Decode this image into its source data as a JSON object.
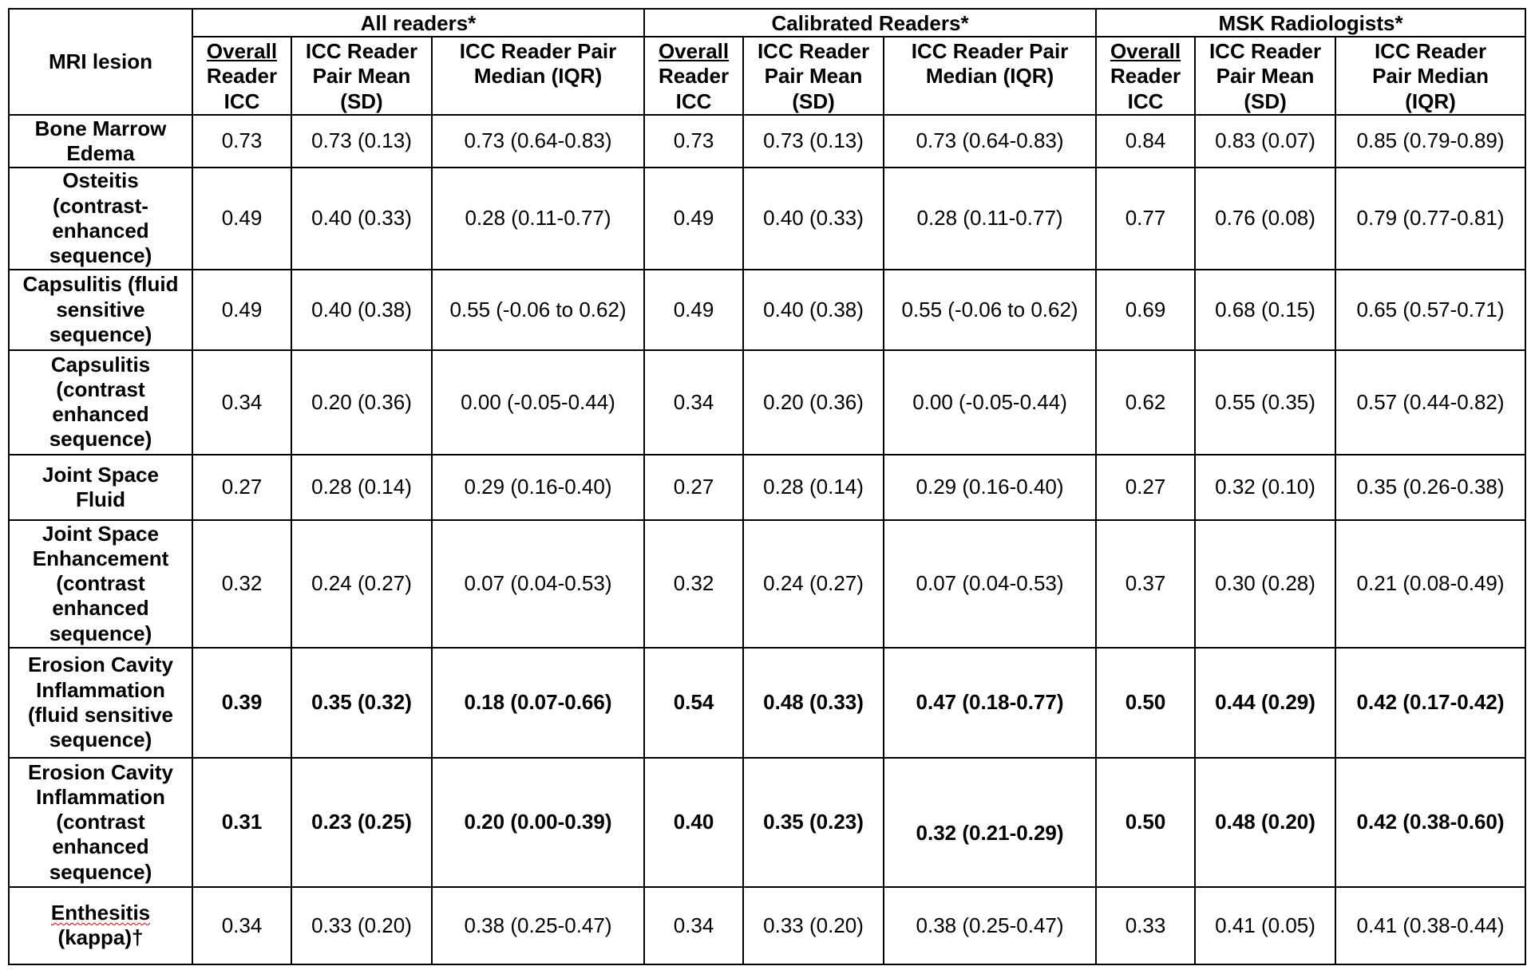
{
  "table": {
    "corner": "MRI lesion",
    "groups": [
      "All readers*",
      "Calibrated Readers*",
      "MSK Radiologists*"
    ],
    "subheaders": {
      "overall": [
        "Overall",
        "Reader",
        "ICC"
      ],
      "pair_mean": "ICC Reader Pair Mean (SD)",
      "pair_median_wide": "ICC Reader Pair Median (IQR)",
      "pair_median_msk": "ICC Reader Pair Median (IQR)"
    },
    "rows": [
      {
        "lesion": "Bone Marrow Edema",
        "cells": [
          "0.73",
          "0.73 (0.13)",
          "0.73 (0.64-0.83)",
          "0.73",
          "0.73 (0.13)",
          "0.73 (0.64-0.83)",
          "0.84",
          "0.83 (0.07)",
          "0.85 (0.79-0.89)"
        ]
      },
      {
        "lesion": "Osteitis (contrast-enhanced sequence)",
        "cells": [
          "0.49",
          "0.40 (0.33)",
          "0.28 (0.11-0.77)",
          "0.49",
          "0.40 (0.33)",
          "0.28 (0.11-0.77)",
          "0.77",
          "0.76 (0.08)",
          "0.79 (0.77-0.81)"
        ]
      },
      {
        "lesion": "Capsulitis (fluid sensitive sequence)",
        "cells": [
          "0.49",
          "0.40 (0.38)",
          "0.55 (-0.06 to 0.62)",
          "0.49",
          "0.40 (0.38)",
          "0.55 (-0.06 to 0.62)",
          "0.69",
          "0.68 (0.15)",
          "0.65 (0.57-0.71)"
        ]
      },
      {
        "lesion": "Capsulitis (contrast enhanced sequence)",
        "cells": [
          "0.34",
          "0.20 (0.36)",
          "0.00 (-0.05-0.44)",
          "0.34",
          "0.20 (0.36)",
          "0.00 (-0.05-0.44)",
          "0.62",
          "0.55 (0.35)",
          "0.57 (0.44-0.82)"
        ]
      },
      {
        "lesion": "Joint Space Fluid",
        "cells": [
          "0.27",
          "0.28 (0.14)",
          "0.29 (0.16-0.40)",
          "0.27",
          "0.28 (0.14)",
          "0.29 (0.16-0.40)",
          "0.27",
          "0.32 (0.10)",
          "0.35 (0.26-0.38)"
        ]
      },
      {
        "lesion": "Joint Space Enhancement (contrast enhanced sequence)",
        "cells": [
          "0.32",
          "0.24 (0.27)",
          "0.07 (0.04-0.53)",
          "0.32",
          "0.24 (0.27)",
          "0.07 (0.04-0.53)",
          "0.37",
          "0.30 (0.28)",
          "0.21 (0.08-0.49)"
        ]
      },
      {
        "lesion": "Erosion Cavity Inflammation (fluid sensitive sequence)",
        "cells": [
          "0.39",
          "0.35 (0.32)",
          "0.18 (0.07-0.66)",
          "0.54",
          "0.48 (0.33)",
          "0.47 (0.18-0.77)",
          "0.50",
          "0.44 (0.29)",
          "0.42 (0.17-0.42)"
        ]
      },
      {
        "lesion": "Erosion Cavity Inflammation (contrast enhanced sequence)",
        "cells": [
          "0.31",
          "0.23 (0.25)",
          "0.20 (0.00-0.39)",
          "0.40",
          "0.35 (0.23)",
          "0.32 (0.21-0.29)",
          "0.50",
          "0.48 (0.20)",
          "0.42 (0.38-0.60)"
        ]
      },
      {
        "lesion_word": "Enthesitis",
        "lesion_rest": "(kappa)†",
        "cells": [
          "0.34",
          "0.33 (0.20)",
          "0.38 (0.25-0.47)",
          "0.34",
          "0.33 (0.20)",
          "0.38 (0.25-0.47)",
          "0.33",
          "0.41 (0.05)",
          "0.41 (0.38-0.44)"
        ]
      }
    ]
  }
}
